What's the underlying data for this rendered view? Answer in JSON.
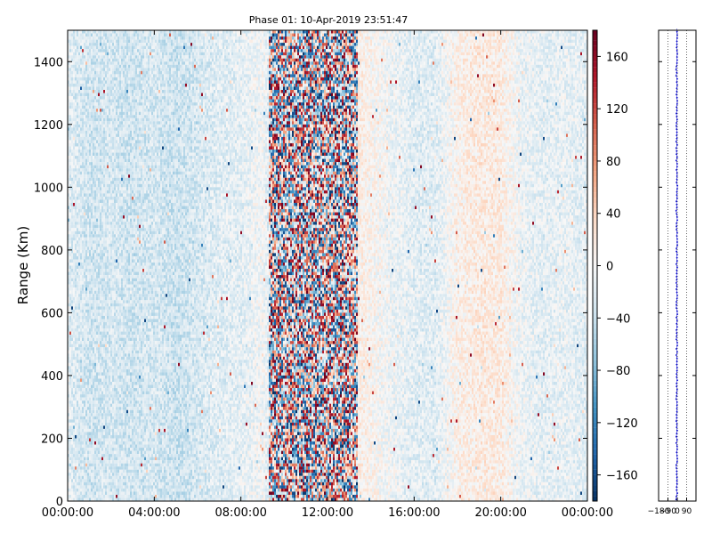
{
  "chart_data": {
    "type": "heatmap",
    "title": "Phase 01: 10-Apr-2019 23:51:47",
    "xlabel": "",
    "ylabel": "Range (Km)",
    "x_ticks": [
      "00:00:00",
      "04:00:00",
      "08:00:00",
      "12:00:00",
      "16:00:00",
      "20:00:00",
      "00:00:00"
    ],
    "xlim_hours": [
      0,
      24
    ],
    "y_ticks": [
      "0",
      "200",
      "400",
      "600",
      "800",
      "1000",
      "1200",
      "1400"
    ],
    "ylim": [
      0,
      1500
    ],
    "colorbar": {
      "colormap": "RdBu_r",
      "range": [
        -180,
        180
      ],
      "ticks": [
        "160",
        "120",
        "80",
        "40",
        "0",
        "−40",
        "−80",
        "−120",
        "−160"
      ],
      "tick_values": [
        160,
        120,
        80,
        40,
        0,
        -40,
        -80,
        -120,
        -160
      ]
    },
    "phase_profile_by_hour": [
      {
        "hour": 0,
        "phase": -20
      },
      {
        "hour": 1,
        "phase": -35
      },
      {
        "hour": 2,
        "phase": -30
      },
      {
        "hour": 3,
        "phase": -35
      },
      {
        "hour": 4,
        "phase": -30
      },
      {
        "hour": 5,
        "phase": -38
      },
      {
        "hour": 6,
        "phase": -30
      },
      {
        "hour": 7,
        "phase": -22
      },
      {
        "hour": 8,
        "phase": -18
      },
      {
        "hour": 9,
        "phase": -5
      },
      {
        "hour": 10,
        "phase": -60
      },
      {
        "hour": 11,
        "phase": -60
      },
      {
        "hour": 12,
        "phase": 10
      },
      {
        "hour": 13,
        "phase": 20
      },
      {
        "hour": 14,
        "phase": 5
      },
      {
        "hour": 15,
        "phase": -10
      },
      {
        "hour": 16,
        "phase": -20
      },
      {
        "hour": 17,
        "phase": -22
      },
      {
        "hour": 18,
        "phase": 10
      },
      {
        "hour": 19,
        "phase": 18
      },
      {
        "hour": 20,
        "phase": 15
      },
      {
        "hour": 21,
        "phase": -12
      },
      {
        "hour": 22,
        "phase": -18
      },
      {
        "hour": 23,
        "phase": -15
      },
      {
        "hour": 24,
        "phase": -20
      }
    ],
    "side_panel": {
      "type": "scatter",
      "x_ticks": [
        "−180",
        "−90",
        "0",
        "90"
      ],
      "x_tick_values": [
        -180,
        -90,
        0,
        90
      ],
      "xlim": [
        -180,
        180
      ],
      "points_color": "#0000cc",
      "grid": "dotted vertical",
      "mean_phase": -5
    }
  }
}
